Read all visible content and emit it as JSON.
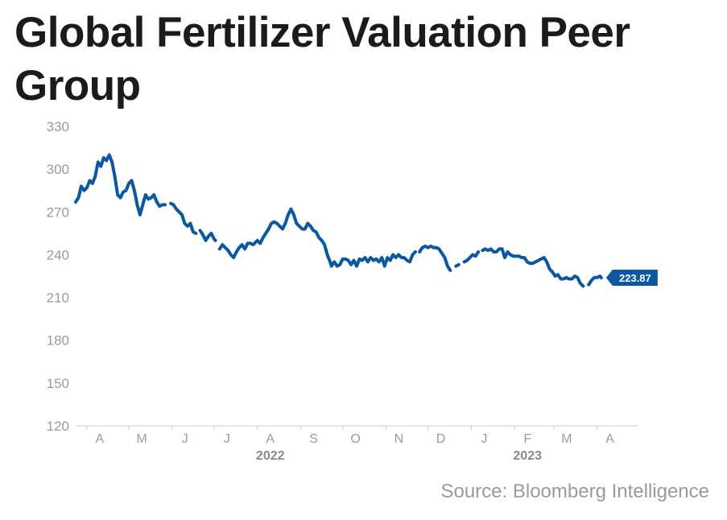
{
  "title": "Global Fertilizer Valuation Peer Group",
  "source": "Source: Bloomberg Intelligence",
  "colors": {
    "line": "#0b57a0",
    "axis": "#cccccc",
    "text": "#9a9a9a",
    "title": "#1e1a1a"
  },
  "chart_data": {
    "type": "line",
    "title": "Global Fertilizer Valuation Peer Group",
    "xlabel": "",
    "ylabel": "",
    "ylim": [
      120,
      330
    ],
    "yticks": [
      120,
      150,
      180,
      210,
      240,
      270,
      300,
      330
    ],
    "xlim": [
      "2022-03-24",
      "2023-04-30"
    ],
    "x_tick_labels": [
      {
        "label": "A",
        "date": "2022-04-01"
      },
      {
        "label": "M",
        "date": "2022-05-01"
      },
      {
        "label": "J",
        "date": "2022-06-01"
      },
      {
        "label": "J",
        "date": "2022-07-01"
      },
      {
        "label": "A",
        "date": "2022-08-01"
      },
      {
        "label": "S",
        "date": "2022-09-01"
      },
      {
        "label": "O",
        "date": "2022-10-01"
      },
      {
        "label": "N",
        "date": "2022-11-01"
      },
      {
        "label": "D",
        "date": "2022-12-01"
      },
      {
        "label": "J",
        "date": "2023-01-01"
      },
      {
        "label": "F",
        "date": "2023-02-01"
      },
      {
        "label": "M",
        "date": "2023-03-01"
      },
      {
        "label": "A",
        "date": "2023-04-01"
      }
    ],
    "year_labels": [
      {
        "label": "2022",
        "date": "2022-08-01"
      },
      {
        "label": "2023",
        "date": "2023-02-01"
      }
    ],
    "grid": false,
    "legend": "none",
    "last_value_label": "223.87",
    "series": [
      {
        "segments": [
          [
            [
              "2022-03-24",
              277
            ],
            [
              "2022-03-26",
              280
            ],
            [
              "2022-03-28",
              288
            ],
            [
              "2022-03-30",
              285
            ],
            [
              "2022-04-01",
              287
            ],
            [
              "2022-04-03",
              292
            ],
            [
              "2022-04-05",
              290
            ],
            [
              "2022-04-07",
              295
            ],
            [
              "2022-04-09",
              305
            ],
            [
              "2022-04-11",
              302
            ],
            [
              "2022-04-13",
              308
            ],
            [
              "2022-04-15",
              306
            ],
            [
              "2022-04-17",
              310
            ],
            [
              "2022-04-19",
              305
            ],
            [
              "2022-04-21",
              295
            ],
            [
              "2022-04-23",
              282
            ],
            [
              "2022-04-25",
              280
            ],
            [
              "2022-04-27",
              284
            ],
            [
              "2022-04-29",
              285
            ],
            [
              "2022-05-01",
              290
            ],
            [
              "2022-05-03",
              292
            ],
            [
              "2022-05-05",
              285
            ],
            [
              "2022-05-07",
              275
            ],
            [
              "2022-05-09",
              268
            ],
            [
              "2022-05-11",
              275
            ],
            [
              "2022-05-13",
              282
            ],
            [
              "2022-05-15",
              279
            ],
            [
              "2022-05-17",
              280
            ],
            [
              "2022-05-19",
              282
            ],
            [
              "2022-05-21",
              277
            ],
            [
              "2022-05-23",
              274
            ],
            [
              "2022-05-25",
              275
            ],
            [
              "2022-05-27",
              275
            ]
          ],
          [
            [
              "2022-05-31",
              276
            ],
            [
              "2022-06-02",
              275
            ],
            [
              "2022-06-04",
              272
            ],
            [
              "2022-06-06",
              270
            ],
            [
              "2022-06-08",
              268
            ],
            [
              "2022-06-10",
              262
            ],
            [
              "2022-06-12",
              260
            ],
            [
              "2022-06-14",
              262
            ],
            [
              "2022-06-16",
              256
            ],
            [
              "2022-06-18",
              255
            ]
          ],
          [
            [
              "2022-06-21",
              257
            ],
            [
              "2022-06-23",
              254
            ],
            [
              "2022-06-25",
              250
            ],
            [
              "2022-06-27",
              253
            ],
            [
              "2022-06-29",
              255
            ],
            [
              "2022-07-01",
              251
            ],
            [
              "2022-07-02",
              250
            ]
          ],
          [
            [
              "2022-07-05",
              244
            ],
            [
              "2022-07-07",
              247
            ],
            [
              "2022-07-09",
              245
            ],
            [
              "2022-07-11",
              243
            ],
            [
              "2022-07-13",
              240
            ],
            [
              "2022-07-15",
              238
            ],
            [
              "2022-07-17",
              242
            ],
            [
              "2022-07-19",
              245
            ],
            [
              "2022-07-21",
              247
            ],
            [
              "2022-07-23",
              244
            ],
            [
              "2022-07-25",
              248
            ],
            [
              "2022-07-27",
              248
            ],
            [
              "2022-07-29",
              247
            ],
            [
              "2022-08-01",
              250
            ],
            [
              "2022-08-03",
              248
            ],
            [
              "2022-08-05",
              252
            ],
            [
              "2022-08-07",
              255
            ],
            [
              "2022-08-09",
              258
            ],
            [
              "2022-08-11",
              262
            ],
            [
              "2022-08-13",
              263
            ],
            [
              "2022-08-15",
              262
            ],
            [
              "2022-08-17",
              260
            ],
            [
              "2022-08-19",
              258
            ],
            [
              "2022-08-21",
              262
            ],
            [
              "2022-08-23",
              268
            ],
            [
              "2022-08-25",
              272
            ],
            [
              "2022-08-27",
              268
            ],
            [
              "2022-08-29",
              262
            ],
            [
              "2022-08-31",
              260
            ],
            [
              "2022-09-02",
              258
            ],
            [
              "2022-09-04",
              258
            ],
            [
              "2022-09-06",
              262
            ],
            [
              "2022-09-08",
              260
            ],
            [
              "2022-09-10",
              257
            ],
            [
              "2022-09-12",
              256
            ],
            [
              "2022-09-14",
              252
            ],
            [
              "2022-09-16",
              250
            ],
            [
              "2022-09-18",
              247
            ],
            [
              "2022-09-20",
              240
            ],
            [
              "2022-09-22",
              235
            ],
            [
              "2022-09-23",
              232
            ],
            [
              "2022-09-25",
              235
            ],
            [
              "2022-09-27",
              232
            ],
            [
              "2022-09-29",
              233
            ],
            [
              "2022-10-01",
              237
            ],
            [
              "2022-10-03",
              237
            ],
            [
              "2022-10-05",
              236
            ],
            [
              "2022-10-07",
              233
            ],
            [
              "2022-10-09",
              236
            ],
            [
              "2022-10-11",
              232
            ],
            [
              "2022-10-13",
              237
            ],
            [
              "2022-10-15",
              236
            ],
            [
              "2022-10-17",
              238
            ],
            [
              "2022-10-19",
              235
            ],
            [
              "2022-10-21",
              238
            ],
            [
              "2022-10-23",
              236
            ],
            [
              "2022-10-25",
              237
            ],
            [
              "2022-10-27",
              235
            ],
            [
              "2022-10-29",
              238
            ],
            [
              "2022-10-31",
              232
            ],
            [
              "2022-11-02",
              238
            ],
            [
              "2022-11-04",
              236
            ],
            [
              "2022-11-06",
              240
            ],
            [
              "2022-11-08",
              238
            ],
            [
              "2022-11-10",
              240
            ],
            [
              "2022-11-12",
              238
            ],
            [
              "2022-11-14",
              238
            ],
            [
              "2022-11-16",
              236
            ],
            [
              "2022-11-18",
              235
            ],
            [
              "2022-11-20",
              240
            ],
            [
              "2022-11-22",
              242
            ]
          ],
          [
            [
              "2022-11-25",
              242
            ],
            [
              "2022-11-27",
              245
            ],
            [
              "2022-11-29",
              246
            ],
            [
              "2022-12-01",
              245
            ],
            [
              "2022-12-03",
              246
            ],
            [
              "2022-12-05",
              245
            ],
            [
              "2022-12-07",
              245
            ],
            [
              "2022-12-09",
              244
            ],
            [
              "2022-12-11",
              241
            ],
            [
              "2022-12-13",
              238
            ],
            [
              "2022-12-15",
              232
            ],
            [
              "2022-12-17",
              229
            ]
          ],
          [
            [
              "2022-12-21",
              232
            ],
            [
              "2022-12-23",
              233
            ]
          ],
          [
            [
              "2022-12-27",
              235
            ],
            [
              "2022-12-29",
              236
            ],
            [
              "2022-12-31",
              238
            ],
            [
              "2023-01-02",
              240
            ],
            [
              "2023-01-04",
              239
            ],
            [
              "2023-01-06",
              242
            ]
          ],
          [
            [
              "2023-01-09",
              243
            ],
            [
              "2023-01-11",
              244
            ],
            [
              "2023-01-13",
              243
            ],
            [
              "2023-01-15",
              244
            ],
            [
              "2023-01-17",
              242
            ],
            [
              "2023-01-19",
              242
            ],
            [
              "2023-01-21",
              244
            ],
            [
              "2023-01-23",
              244
            ],
            [
              "2023-01-25",
              238
            ],
            [
              "2023-01-27",
              242
            ],
            [
              "2023-01-29",
              240
            ],
            [
              "2023-01-31",
              239
            ],
            [
              "2023-02-02",
              239
            ],
            [
              "2023-02-04",
              239
            ],
            [
              "2023-02-06",
              238
            ],
            [
              "2023-02-08",
              238
            ],
            [
              "2023-02-10",
              235
            ],
            [
              "2023-02-12",
              234
            ],
            [
              "2023-02-14",
              234
            ],
            [
              "2023-02-16",
              235
            ],
            [
              "2023-02-18",
              236
            ],
            [
              "2023-02-20",
              237
            ],
            [
              "2023-02-22",
              238
            ],
            [
              "2023-02-24",
              235
            ],
            [
              "2023-02-26",
              230
            ],
            [
              "2023-02-28",
              228
            ],
            [
              "2023-03-02",
              225
            ],
            [
              "2023-03-04",
              226
            ],
            [
              "2023-03-06",
              223
            ],
            [
              "2023-03-08",
              223
            ],
            [
              "2023-03-10",
              224
            ],
            [
              "2023-03-12",
              223
            ],
            [
              "2023-03-14",
              223
            ],
            [
              "2023-03-16",
              225
            ],
            [
              "2023-03-18",
              224
            ],
            [
              "2023-03-20",
              220
            ],
            [
              "2023-03-22",
              218
            ]
          ],
          [
            [
              "2023-03-26",
              219
            ],
            [
              "2023-03-28",
              222
            ],
            [
              "2023-03-30",
              224
            ],
            [
              "2023-04-01",
              224
            ],
            [
              "2023-04-03",
              225
            ],
            [
              "2023-04-04",
              223.87
            ]
          ]
        ]
      }
    ]
  }
}
